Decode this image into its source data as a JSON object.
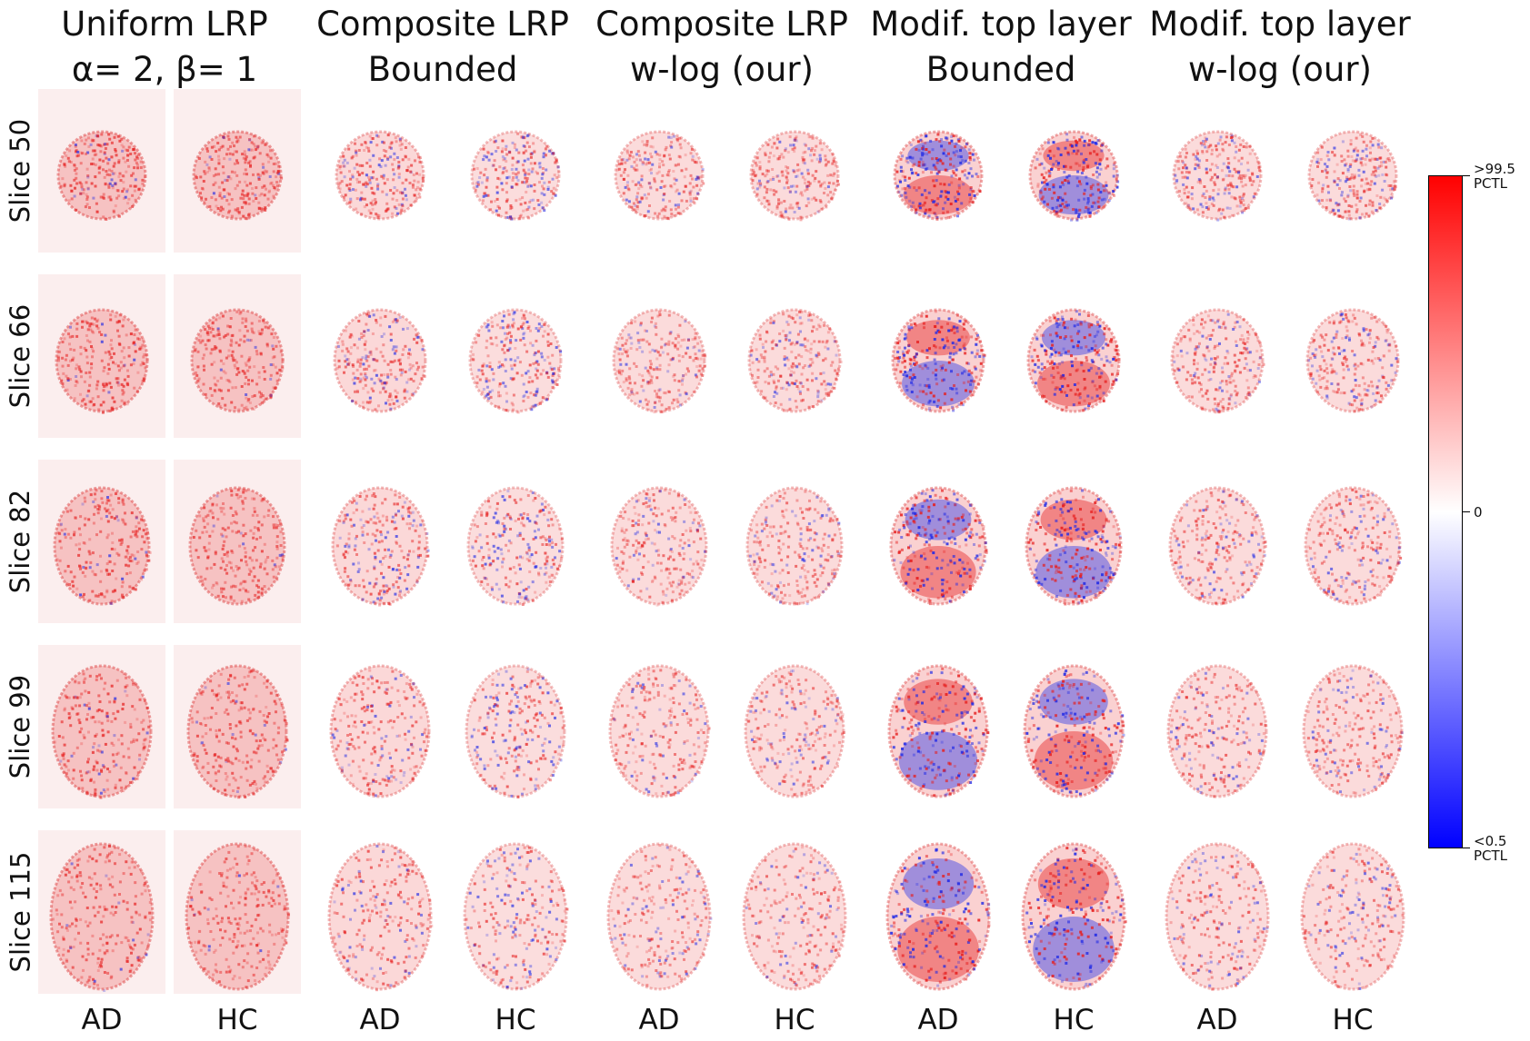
{
  "columns": [
    {
      "line1": "Uniform LRP",
      "line2": "α= 2, β= 1"
    },
    {
      "line1": "Composite LRP",
      "line2": "Bounded"
    },
    {
      "line1": "Composite LRP",
      "line2": "w-log (our)"
    },
    {
      "line1": "Modif. top layer",
      "line2": "Bounded"
    },
    {
      "line1": "Modif. top layer",
      "line2": "w-log (our)"
    }
  ],
  "rows": [
    "Slice 50",
    "Slice 66",
    "Slice 82",
    "Slice 99",
    "Slice 115"
  ],
  "subjects": [
    "AD",
    "HC",
    "AD",
    "HC",
    "AD",
    "HC",
    "AD",
    "HC",
    "AD",
    "HC"
  ],
  "colorbar": {
    "top_label_1": ">99.5",
    "top_label_2": "PCTL",
    "mid_label": "0",
    "bottom_label_1": "<0.5",
    "bottom_label_2": "PCTL",
    "colors": {
      "high": "#ff0000",
      "mid": "#ffffff",
      "low": "#0000ff"
    }
  }
}
